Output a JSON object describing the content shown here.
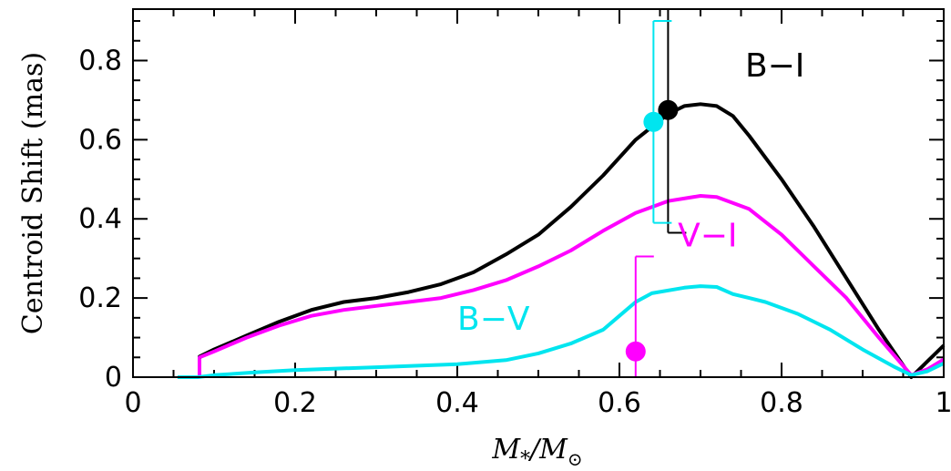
{
  "chart_data": {
    "type": "line",
    "xlabel_main": "M",
    "xlabel_sub1": "*",
    "xlabel_sep": "/M",
    "xlabel_sub2": "⊙",
    "ylabel": "Centroid Shift (mas)",
    "xlim": [
      0,
      1
    ],
    "ylim": [
      0,
      0.93
    ],
    "x_ticks": [
      0,
      0.2,
      0.4,
      0.6,
      0.8,
      1
    ],
    "x_tick_labels": [
      "0",
      "0.2",
      "0.4",
      "0.6",
      "0.8",
      "1"
    ],
    "y_ticks": [
      0,
      0.2,
      0.4,
      0.6,
      0.8
    ],
    "y_tick_labels": [
      "0",
      "0.2",
      "0.4",
      "0.6",
      "0.8"
    ],
    "grid": false,
    "series": [
      {
        "name": "B−I",
        "color": "#000000",
        "points": [
          [
            0.082,
            0
          ],
          [
            0.082,
            0.052
          ],
          [
            0.1,
            0.07
          ],
          [
            0.14,
            0.105
          ],
          [
            0.18,
            0.14
          ],
          [
            0.22,
            0.17
          ],
          [
            0.26,
            0.19
          ],
          [
            0.3,
            0.2
          ],
          [
            0.34,
            0.215
          ],
          [
            0.38,
            0.235
          ],
          [
            0.42,
            0.265
          ],
          [
            0.46,
            0.31
          ],
          [
            0.5,
            0.36
          ],
          [
            0.54,
            0.43
          ],
          [
            0.58,
            0.51
          ],
          [
            0.62,
            0.6
          ],
          [
            0.66,
            0.665
          ],
          [
            0.68,
            0.685
          ],
          [
            0.7,
            0.69
          ],
          [
            0.72,
            0.685
          ],
          [
            0.74,
            0.66
          ],
          [
            0.76,
            0.61
          ],
          [
            0.8,
            0.5
          ],
          [
            0.84,
            0.38
          ],
          [
            0.88,
            0.25
          ],
          [
            0.92,
            0.12
          ],
          [
            0.96,
            0.0
          ],
          [
            0.98,
            0.04
          ],
          [
            1.0,
            0.08
          ]
        ]
      },
      {
        "name": "V−I",
        "color": "#ff00ff",
        "points": [
          [
            0.082,
            0
          ],
          [
            0.082,
            0.05
          ],
          [
            0.1,
            0.065
          ],
          [
            0.14,
            0.1
          ],
          [
            0.18,
            0.13
          ],
          [
            0.22,
            0.155
          ],
          [
            0.26,
            0.17
          ],
          [
            0.3,
            0.18
          ],
          [
            0.34,
            0.19
          ],
          [
            0.38,
            0.2
          ],
          [
            0.42,
            0.22
          ],
          [
            0.46,
            0.245
          ],
          [
            0.5,
            0.28
          ],
          [
            0.54,
            0.32
          ],
          [
            0.58,
            0.37
          ],
          [
            0.62,
            0.415
          ],
          [
            0.66,
            0.445
          ],
          [
            0.7,
            0.458
          ],
          [
            0.72,
            0.455
          ],
          [
            0.76,
            0.425
          ],
          [
            0.8,
            0.36
          ],
          [
            0.84,
            0.28
          ],
          [
            0.88,
            0.2
          ],
          [
            0.92,
            0.1
          ],
          [
            0.96,
            0.005
          ],
          [
            0.98,
            0.02
          ],
          [
            1.0,
            0.045
          ]
        ]
      },
      {
        "name": "B−V",
        "color": "#00e5ef",
        "points": [
          [
            0.055,
            0
          ],
          [
            0.08,
            0
          ],
          [
            0.1,
            0.005
          ],
          [
            0.15,
            0.012
          ],
          [
            0.2,
            0.018
          ],
          [
            0.3,
            0.025
          ],
          [
            0.4,
            0.033
          ],
          [
            0.46,
            0.043
          ],
          [
            0.5,
            0.06
          ],
          [
            0.54,
            0.085
          ],
          [
            0.58,
            0.12
          ],
          [
            0.6,
            0.155
          ],
          [
            0.62,
            0.19
          ],
          [
            0.64,
            0.212
          ],
          [
            0.68,
            0.226
          ],
          [
            0.7,
            0.23
          ],
          [
            0.72,
            0.228
          ],
          [
            0.74,
            0.21
          ],
          [
            0.76,
            0.2
          ],
          [
            0.78,
            0.19
          ],
          [
            0.82,
            0.16
          ],
          [
            0.86,
            0.12
          ],
          [
            0.9,
            0.07
          ],
          [
            0.94,
            0.025
          ],
          [
            0.96,
            0.005
          ],
          [
            0.98,
            0.015
          ],
          [
            1.0,
            0.035
          ]
        ]
      }
    ],
    "measurements": [
      {
        "series": "B−I",
        "x": 0.66,
        "y": 0.675,
        "y_low": 0.365,
        "y_high": 0.93,
        "color": "#000000"
      },
      {
        "series": "B−V",
        "x": 0.642,
        "y": 0.645,
        "y_low": 0.39,
        "y_high": 0.9,
        "color": "#00e5ef"
      },
      {
        "series": "V−I",
        "x": 0.62,
        "y": 0.065,
        "y_low": 0.0,
        "y_high": 0.305,
        "color": "#ff00ff"
      }
    ]
  }
}
